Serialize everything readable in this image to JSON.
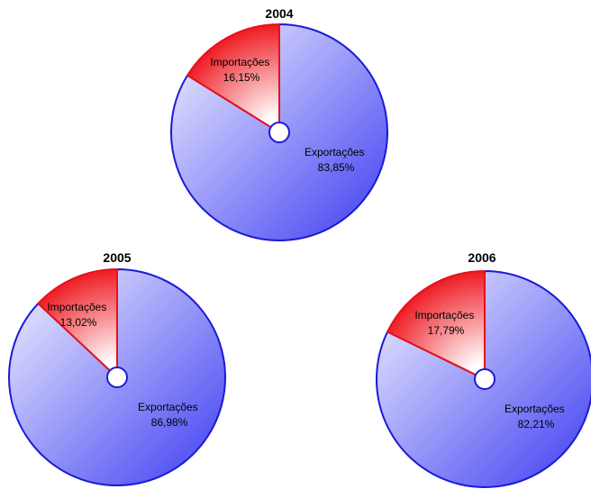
{
  "chart_data": [
    {
      "type": "pie",
      "title": "2004",
      "slices": [
        {
          "label": "Exportações",
          "value": 83.85,
          "value_label": "83,85%"
        },
        {
          "label": "Importações",
          "value": 16.15,
          "value_label": "16,15%"
        }
      ]
    },
    {
      "type": "pie",
      "title": "2005",
      "slices": [
        {
          "label": "Exportações",
          "value": 86.98,
          "value_label": "86,98%"
        },
        {
          "label": "Importações",
          "value": 13.02,
          "value_label": "13,02%"
        }
      ]
    },
    {
      "type": "pie",
      "title": "2006",
      "slices": [
        {
          "label": "Exportações",
          "value": 82.21,
          "value_label": "82,21%"
        },
        {
          "label": "Importações",
          "value": 17.79,
          "value_label": "17,79%"
        }
      ]
    }
  ],
  "colors": {
    "exports_edge": "#1a1ad6",
    "exports_dark": "#3c3cf2",
    "exports_light": "#f4f4ff",
    "imports_edge": "#e8101a",
    "imports_dark": "#ee1c24",
    "imports_light": "#ffffff"
  }
}
